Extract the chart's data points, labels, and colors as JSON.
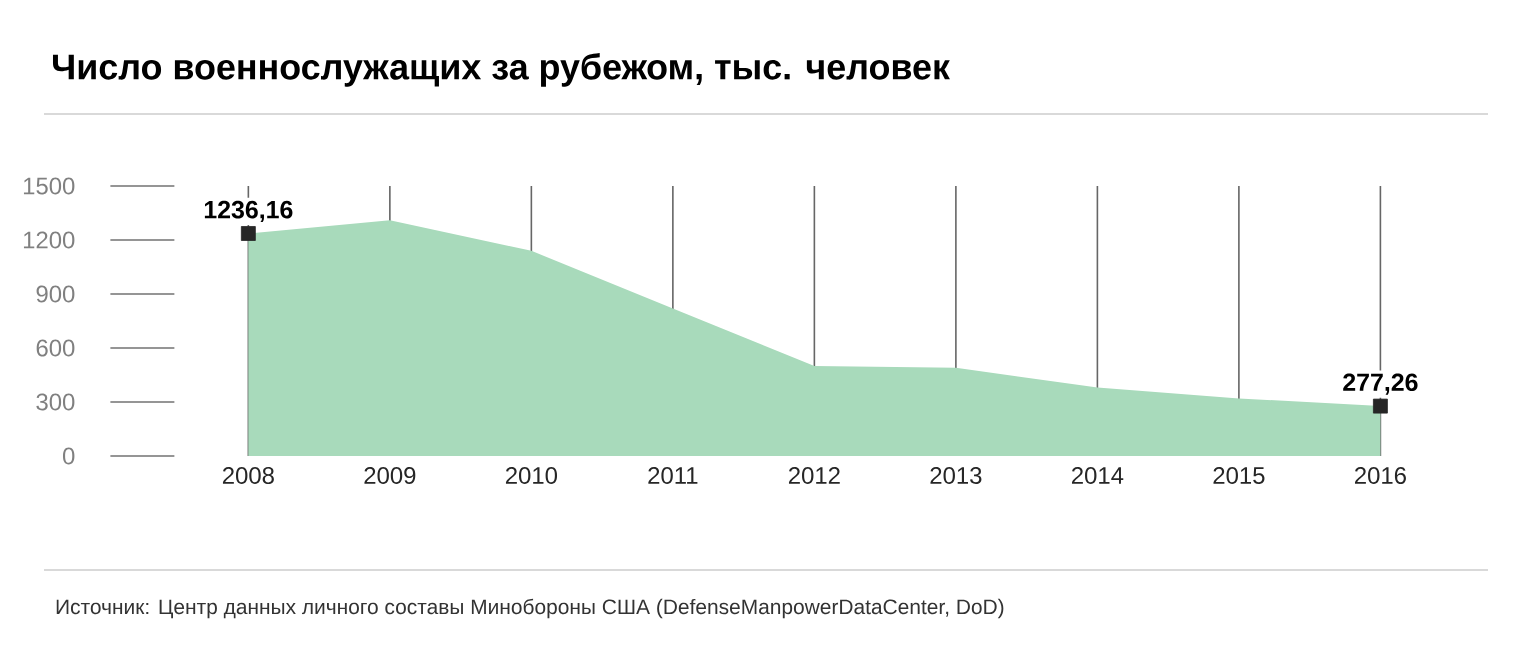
{
  "chart_data": {
    "type": "area",
    "title": "Число военнослужащих за рубежом, тыс. человек",
    "categories": [
      "2008",
      "2009",
      "2010",
      "2011",
      "2012",
      "2013",
      "2014",
      "2015",
      "2016"
    ],
    "values": [
      1236.16,
      1310,
      1140,
      820,
      500,
      490,
      380,
      320,
      277.26
    ],
    "value_labels": [
      "1236,16",
      null,
      null,
      null,
      null,
      null,
      null,
      null,
      "277,26"
    ],
    "color": "#a8dabb",
    "ylim": [
      0,
      1500
    ],
    "yticks": [
      0,
      300,
      600,
      900,
      1200,
      1500
    ],
    "grid": "x",
    "annotations": [
      "Источник:  Центр данных личного составы Минобороны США (DefenseManpowerDataCenter, DoD)"
    ]
  }
}
